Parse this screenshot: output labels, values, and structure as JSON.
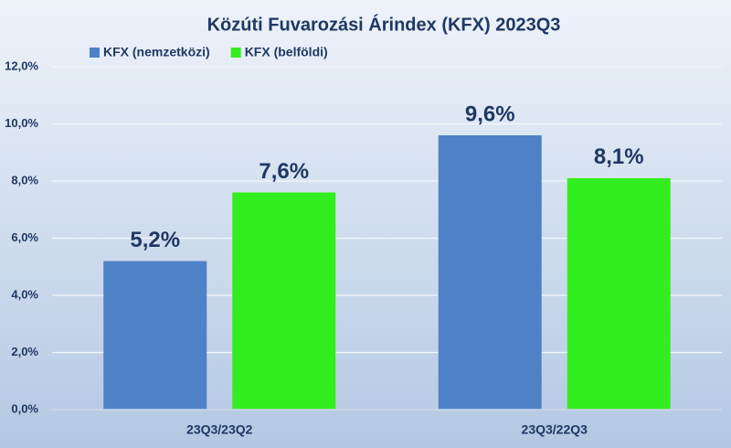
{
  "chart_data": {
    "type": "bar",
    "title": "Közúti Fuvarozási Árindex (KFX) 2023Q3",
    "categories": [
      "23Q3/23Q2",
      "23Q3/22Q3"
    ],
    "series": [
      {
        "name": "KFX (nemzetközi)",
        "color": "#4f81c7",
        "values": [
          5.2,
          9.6
        ],
        "value_labels": [
          "5,2%",
          "9,6%"
        ]
      },
      {
        "name": "KFX (belföldi)",
        "color": "#33ee1e",
        "values": [
          7.6,
          8.1
        ],
        "value_labels": [
          "7,6%",
          "8,1%"
        ]
      }
    ],
    "ylim": [
      0,
      12
    ],
    "yticks": [
      {
        "value": 0,
        "label": "0,0%"
      },
      {
        "value": 2,
        "label": "2,0%"
      },
      {
        "value": 4,
        "label": "4,0%"
      },
      {
        "value": 6,
        "label": "6,0%"
      },
      {
        "value": 8,
        "label": "8,0%"
      },
      {
        "value": 10,
        "label": "10,0%"
      },
      {
        "value": 12,
        "label": "12,0%"
      }
    ],
    "grid": true,
    "legend": "top-left"
  }
}
